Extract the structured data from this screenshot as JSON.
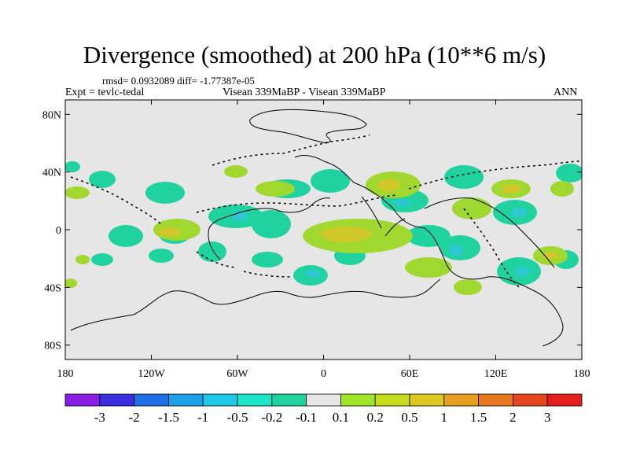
{
  "title": "Divergence (smoothed) at 200 hPa (10**6 m/s)",
  "stats_text": "rmsd= 0.0932089 diff= -1.77387e-05",
  "expt_label": "Expt = tevlc-tedal",
  "subtitle": "Visean 339MaBP - Visean 339MaBP",
  "season": "ANN",
  "lat_ticks": [
    {
      "value": 80,
      "label": "80N"
    },
    {
      "value": 40,
      "label": "40N"
    },
    {
      "value": 0,
      "label": "0"
    },
    {
      "value": -40,
      "label": "40S"
    },
    {
      "value": -80,
      "label": "80S"
    }
  ],
  "lon_ticks": [
    {
      "value": -180,
      "label": "180"
    },
    {
      "value": -120,
      "label": "120W"
    },
    {
      "value": -60,
      "label": "60W"
    },
    {
      "value": 0,
      "label": "0"
    },
    {
      "value": 60,
      "label": "60E"
    },
    {
      "value": 120,
      "label": "120E"
    },
    {
      "value": 180,
      "label": "180"
    }
  ],
  "colorbar": {
    "colors": [
      "#8a1ee6",
      "#3a2ee0",
      "#1e6ee6",
      "#1ea0e6",
      "#1ec8e6",
      "#1ee6c8",
      "#1ed2a0",
      "#e6e6e6",
      "#a0e628",
      "#c8dc1e",
      "#dcc81e",
      "#e6a01e",
      "#e6781e",
      "#e6461e",
      "#e61e1e"
    ],
    "labels": [
      "-3",
      "-2",
      "-1.5",
      "-1",
      "-0.5",
      "-0.2",
      "-0.1",
      "0.1",
      "0.2",
      "0.5",
      "1",
      "1.5",
      "2",
      "3"
    ]
  },
  "field_colors": {
    "background": "#e6e6e6",
    "pos_low": "#a0d830",
    "pos_mid": "#d0c82a",
    "neg_low": "#20d2a0",
    "neg_mid": "#2ec8d2"
  }
}
